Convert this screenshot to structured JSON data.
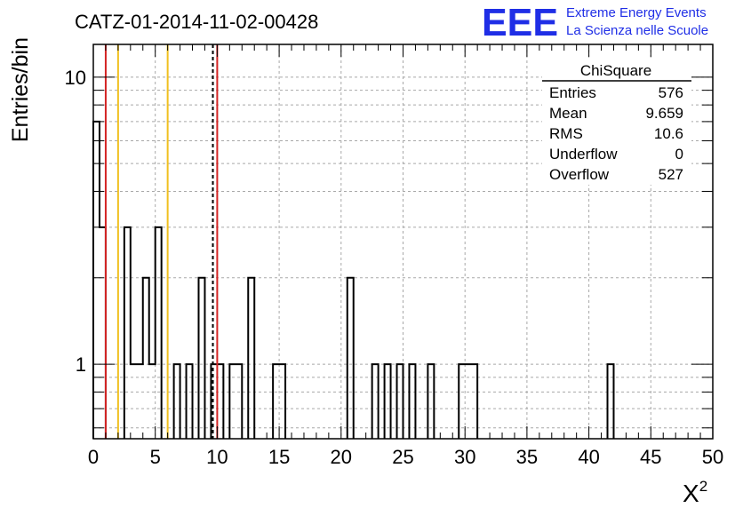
{
  "chart_data": {
    "type": "bar",
    "title": "CATZ-01-2014-11-02-00428",
    "xlabel": "X",
    "xlabel_sup": "2",
    "ylabel": "Entries/bin",
    "yscale": "log",
    "xlim": [
      0,
      50
    ],
    "ylim": [
      0.55,
      13
    ],
    "grid": true,
    "x_ticks": [
      "0",
      "5",
      "10",
      "15",
      "20",
      "25",
      "30",
      "35",
      "40",
      "45",
      "50"
    ],
    "y_ticks": [
      "1",
      "10"
    ],
    "bin_width": 0.5,
    "bins": [
      {
        "x": 0.0,
        "y": 7
      },
      {
        "x": 0.5,
        "y": 3
      },
      {
        "x": 2.5,
        "y": 3
      },
      {
        "x": 3.0,
        "y": 1
      },
      {
        "x": 3.5,
        "y": 1
      },
      {
        "x": 4.0,
        "y": 2
      },
      {
        "x": 4.5,
        "y": 1
      },
      {
        "x": 5.0,
        "y": 3
      },
      {
        "x": 6.5,
        "y": 1
      },
      {
        "x": 7.5,
        "y": 1
      },
      {
        "x": 8.5,
        "y": 2
      },
      {
        "x": 9.5,
        "y": 1
      },
      {
        "x": 10.0,
        "y": 1
      },
      {
        "x": 11.0,
        "y": 1
      },
      {
        "x": 11.5,
        "y": 1
      },
      {
        "x": 12.5,
        "y": 2
      },
      {
        "x": 14.5,
        "y": 1
      },
      {
        "x": 15.0,
        "y": 1
      },
      {
        "x": 20.5,
        "y": 2
      },
      {
        "x": 22.5,
        "y": 1
      },
      {
        "x": 23.5,
        "y": 1
      },
      {
        "x": 24.5,
        "y": 1
      },
      {
        "x": 25.5,
        "y": 1
      },
      {
        "x": 27.0,
        "y": 1
      },
      {
        "x": 29.5,
        "y": 1
      },
      {
        "x": 30.0,
        "y": 1
      },
      {
        "x": 30.5,
        "y": 1
      },
      {
        "x": 41.5,
        "y": 1
      }
    ],
    "vertical_lines": [
      {
        "x": 1.0,
        "color": "#d42424",
        "style": "solid"
      },
      {
        "x": 2.0,
        "color": "#f0c020",
        "style": "solid"
      },
      {
        "x": 6.0,
        "color": "#f0c020",
        "style": "solid"
      },
      {
        "x": 9.65,
        "color": "#000000",
        "style": "dashed"
      },
      {
        "x": 10.0,
        "color": "#d42424",
        "style": "solid"
      }
    ],
    "stats_box": {
      "title": "ChiSquare",
      "rows": [
        {
          "label": "Entries",
          "value": "576"
        },
        {
          "label": "Mean",
          "value": "9.659"
        },
        {
          "label": "RMS",
          "value": "10.6"
        },
        {
          "label": "Underflow",
          "value": "0"
        },
        {
          "label": "Overflow",
          "value": "527"
        }
      ]
    }
  },
  "logo": {
    "mark": "EEE",
    "line1": "Extreme Energy Events",
    "line2": "La Scienza nelle Scuole",
    "color": "#1f2ee6"
  }
}
